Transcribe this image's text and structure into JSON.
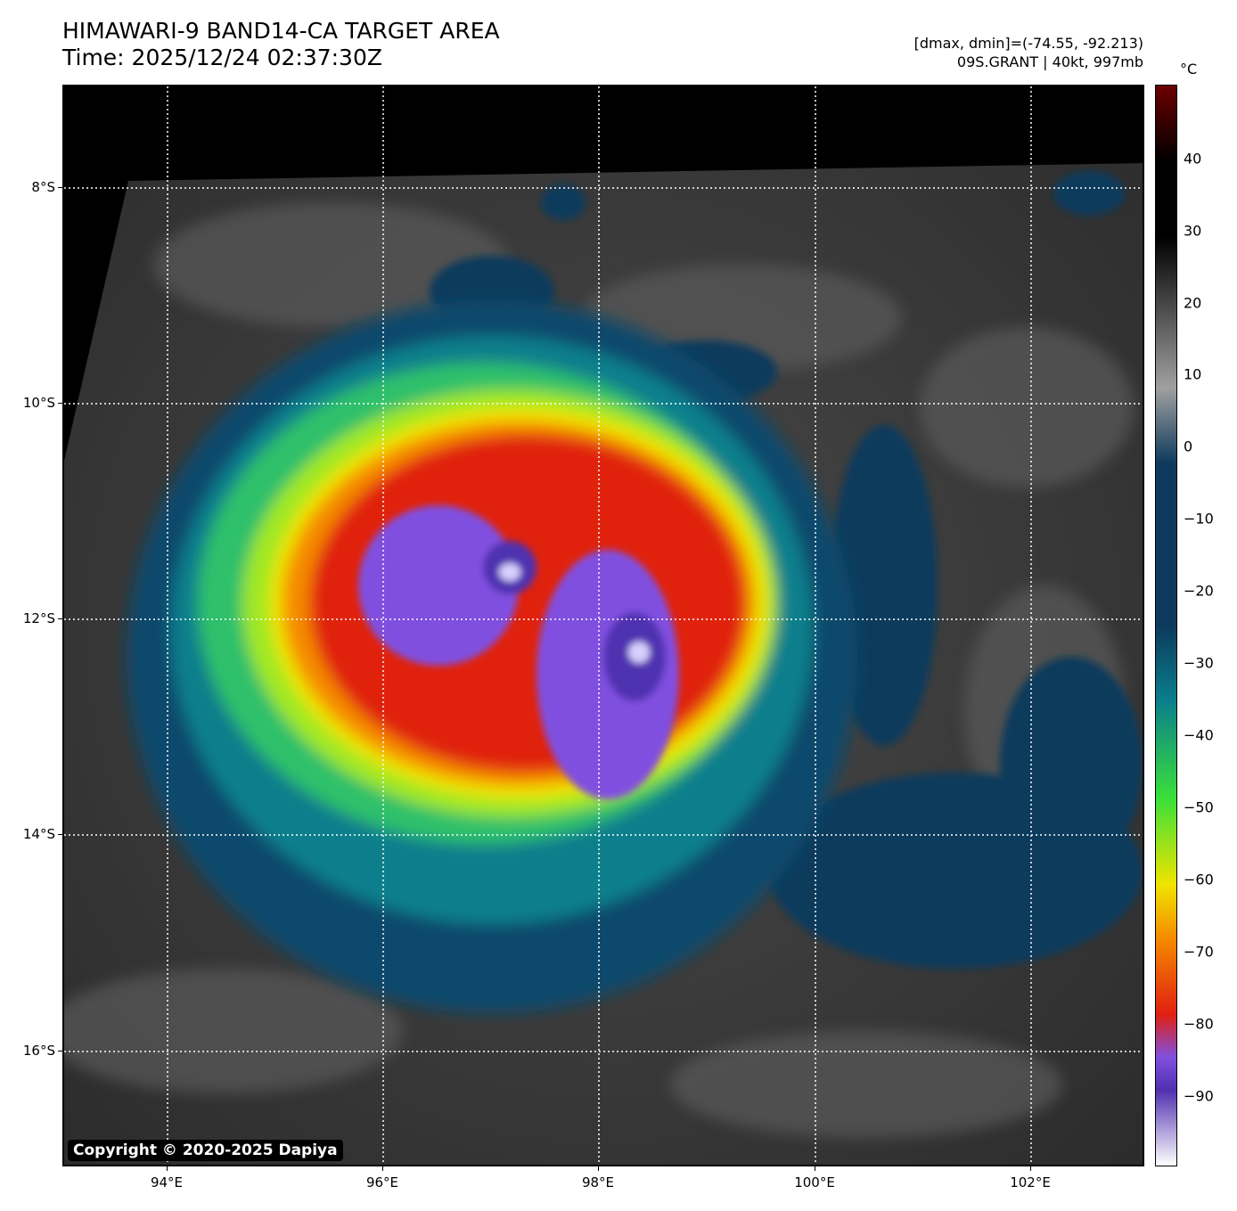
{
  "header": {
    "title_line1": "HIMAWARI-9 BAND14-CA TARGET AREA",
    "title_line2": "Time: 2025/12/24 02:37:30Z",
    "info_line1": "[dmax, dmin]=(-74.55, -92.213)",
    "info_line2": "09S.GRANT | 40kt, 997mb"
  },
  "map": {
    "copyright": "Copyright © 2020-2025 Dapiya",
    "lon_labels": [
      "94°E",
      "96°E",
      "98°E",
      "100°E",
      "102°E"
    ],
    "lat_labels": [
      "8°S",
      "10°S",
      "12°S",
      "14°S",
      "16°S"
    ]
  },
  "colorbar": {
    "unit": "°C",
    "labels": [
      "40",
      "30",
      "20",
      "10",
      "0",
      "−10",
      "−20",
      "−30",
      "−40",
      "−50",
      "−60",
      "−70",
      "−80",
      "−90"
    ],
    "colors": {
      "hot": "#6b0000",
      "warm": "#000000",
      "gray": "#a0a0a0",
      "blue": "#0d3a5c",
      "cyan": "#0a7f8c",
      "green": "#3ae03a",
      "yellow": "#f0e400",
      "orange": "#f58a00",
      "red": "#e02010",
      "purple": "#8050e0",
      "deep_purple": "#5030b0",
      "white": "#ffffff"
    }
  }
}
